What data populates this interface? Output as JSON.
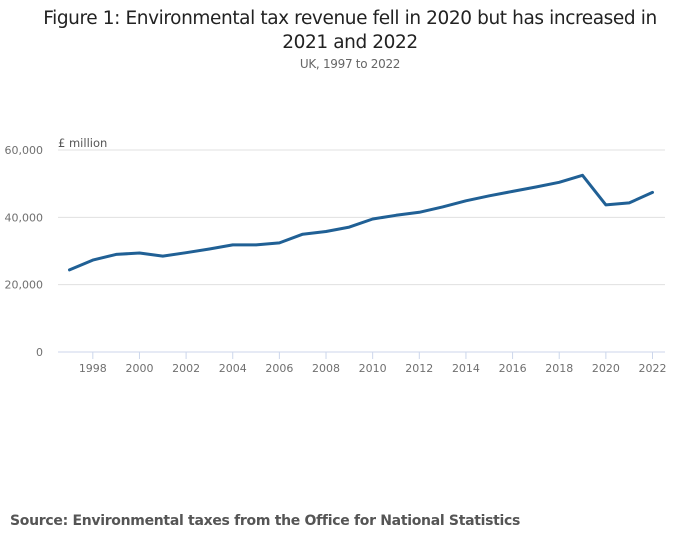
{
  "chart_data": {
    "type": "line",
    "title": "Figure 1: Environmental tax revenue fell in 2020 but has increased in 2021 and 2022",
    "subtitle": "UK, 1997 to 2022",
    "xlabel": "",
    "ylabel": "£ million",
    "ylim": [
      0,
      60000
    ],
    "xlim": [
      1997,
      2022
    ],
    "grid": true,
    "yticks": [
      0,
      20000,
      40000,
      60000
    ],
    "ytick_labels": [
      "0",
      "20,000",
      "40,000",
      "60,000"
    ],
    "xticks": [
      1998,
      2000,
      2002,
      2004,
      2006,
      2008,
      2010,
      2012,
      2014,
      2016,
      2018,
      2020,
      2022
    ],
    "xtick_labels": [
      "1998",
      "2000",
      "2002",
      "2004",
      "2006",
      "2008",
      "2010",
      "2012",
      "2014",
      "2016",
      "2018",
      "2020",
      "2022"
    ],
    "series": [
      {
        "name": "Environmental tax revenue",
        "color": "#206095",
        "x": [
          1997,
          1998,
          1999,
          2000,
          2001,
          2002,
          2003,
          2004,
          2005,
          2006,
          2007,
          2008,
          2009,
          2010,
          2011,
          2012,
          2013,
          2014,
          2015,
          2016,
          2017,
          2018,
          2019,
          2020,
          2021,
          2022
        ],
        "values": [
          24400,
          27300,
          29000,
          29400,
          28500,
          29500,
          30600,
          31800,
          31800,
          32400,
          35000,
          35800,
          37100,
          39500,
          40600,
          41500,
          43100,
          44900,
          46400,
          47700,
          49000,
          50400,
          52500,
          43700,
          44300,
          47400
        ]
      }
    ]
  },
  "source": "Source: Environmental taxes from the Office for National Statistics"
}
